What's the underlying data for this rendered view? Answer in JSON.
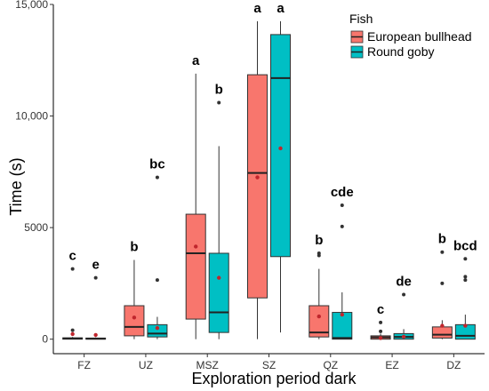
{
  "chart_data": {
    "type": "boxplot",
    "title": "",
    "xlabel": "Exploration period dark",
    "ylabel": "Time (s)",
    "ylim": [
      -650,
      15000
    ],
    "yticks": [
      0,
      5000,
      10000,
      15000
    ],
    "ytick_labels": [
      "0",
      "5000",
      "10,000",
      "15,000"
    ],
    "grid": false,
    "legend": {
      "title": "Fish",
      "position": "top-right",
      "entries": [
        "European bullhead",
        "Round goby"
      ]
    },
    "categories": [
      "FZ",
      "UZ",
      "MSZ",
      "SZ",
      "QZ",
      "EZ",
      "DZ"
    ],
    "series": [
      {
        "name": "European bullhead",
        "color": "#F8766D",
        "boxes": [
          {
            "q1": 0,
            "median": 30,
            "q3": 60,
            "whisker_low": 0,
            "whisker_high": 100,
            "mean": 230,
            "outliers": [
              400,
              3150
            ]
          },
          {
            "q1": 150,
            "median": 550,
            "q3": 1500,
            "whisker_low": 0,
            "whisker_high": 3550,
            "mean": 970,
            "outliers": []
          },
          {
            "q1": 900,
            "median": 3850,
            "q3": 5600,
            "whisker_low": 0,
            "whisker_high": 11900,
            "mean": 4150,
            "outliers": []
          },
          {
            "q1": 1850,
            "median": 7450,
            "q3": 11850,
            "whisker_low": 0,
            "whisker_high": 14250,
            "mean": 7250,
            "outliers": []
          },
          {
            "q1": 100,
            "median": 300,
            "q3": 1500,
            "whisker_low": 0,
            "whisker_high": 3150,
            "mean": 1020,
            "outliers": [
              3750,
              3850
            ]
          },
          {
            "q1": 0,
            "median": 80,
            "q3": 150,
            "whisker_low": 0,
            "whisker_high": 250,
            "mean": 50,
            "outliers": [
              350,
              750
            ]
          },
          {
            "q1": 50,
            "median": 200,
            "q3": 550,
            "whisker_low": 0,
            "whisker_high": 850,
            "mean": 600,
            "outliers": [
              2500,
              3900
            ]
          }
        ]
      },
      {
        "name": "Round goby",
        "color": "#00BFC4",
        "boxes": [
          {
            "q1": 0,
            "median": 20,
            "q3": 50,
            "whisker_low": 0,
            "whisker_high": 80,
            "mean": 190,
            "outliers": [
              2750
            ]
          },
          {
            "q1": 100,
            "median": 250,
            "q3": 650,
            "whisker_low": 0,
            "whisker_high": 1000,
            "mean": 500,
            "outliers": [
              2650,
              7250
            ]
          },
          {
            "q1": 300,
            "median": 1200,
            "q3": 3850,
            "whisker_low": 0,
            "whisker_high": 8650,
            "mean": 2750,
            "outliers": [
              10600
            ]
          },
          {
            "q1": 3700,
            "median": 11700,
            "q3": 13650,
            "whisker_low": 300,
            "whisker_high": 14250,
            "mean": 8550,
            "outliers": []
          },
          {
            "q1": 0,
            "median": 50,
            "q3": 1200,
            "whisker_low": 0,
            "whisker_high": 2100,
            "mean": 1100,
            "outliers": [
              5050,
              6000
            ]
          },
          {
            "q1": 0,
            "median": 100,
            "q3": 250,
            "whisker_low": 0,
            "whisker_high": 450,
            "mean": 110,
            "outliers": [
              2000
            ]
          },
          {
            "q1": 0,
            "median": 150,
            "q3": 650,
            "whisker_low": 0,
            "whisker_high": 1100,
            "mean": 600,
            "outliers": [
              2650,
              2800,
              3600
            ]
          }
        ]
      }
    ],
    "significance_labels": [
      [
        "c",
        "e"
      ],
      [
        "b",
        "bc"
      ],
      [
        "a",
        "b"
      ],
      [
        "a",
        "a"
      ],
      [
        "b",
        "cde"
      ],
      [
        "c",
        "de"
      ],
      [
        "b",
        "bcd"
      ]
    ],
    "outlier_color": "#333333",
    "mean_color": "#C0262D",
    "line_color": "#333333"
  }
}
